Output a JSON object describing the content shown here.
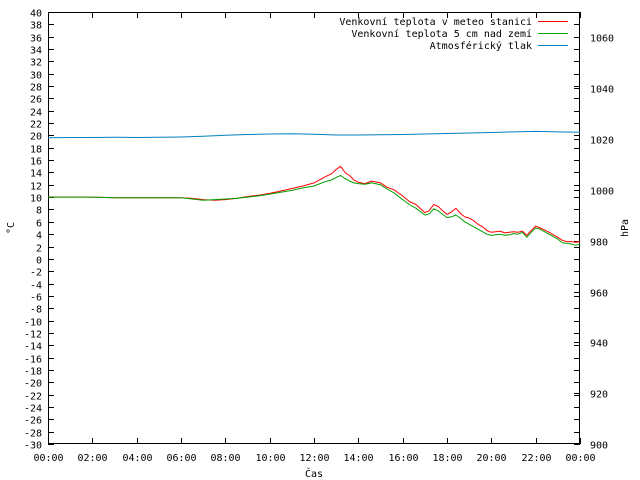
{
  "chart_data": {
    "type": "line",
    "xlabel": "Čas",
    "ylabel": "°C",
    "y2label": "hPa",
    "ylim": [
      -30,
      40
    ],
    "y2lim": [
      900,
      1070
    ],
    "xlim": [
      0,
      24
    ],
    "x_tick_labels": [
      "00:00",
      "02:00",
      "04:00",
      "06:00",
      "08:00",
      "10:00",
      "12:00",
      "14:00",
      "16:00",
      "18:00",
      "20:00",
      "22:00",
      "00:00"
    ],
    "y_ticks": [
      -30,
      -28,
      -26,
      -24,
      -22,
      -20,
      -18,
      -16,
      -14,
      -12,
      -10,
      -8,
      -6,
      -4,
      -2,
      0,
      2,
      4,
      6,
      8,
      10,
      12,
      14,
      16,
      18,
      20,
      22,
      24,
      26,
      28,
      30,
      32,
      34,
      36,
      38,
      40
    ],
    "y2_ticks": [
      900,
      920,
      940,
      960,
      980,
      1000,
      1020,
      1040,
      1060
    ],
    "grid": false,
    "legend": "top-right",
    "series": [
      {
        "name": "Venkovní teplota v meteo stanici",
        "axis": "y",
        "color": "#ff0000",
        "x": [
          0,
          1,
          2,
          3,
          4,
          5,
          6,
          6.5,
          7,
          7.5,
          8,
          8.5,
          9,
          9.5,
          10,
          10.5,
          11,
          11.5,
          12,
          12.5,
          12.8,
          13,
          13.2,
          13.4,
          13.6,
          13.8,
          14,
          14.3,
          14.6,
          15,
          15.3,
          15.6,
          16,
          16.3,
          16.6,
          17,
          17.2,
          17.4,
          17.6,
          17.8,
          18,
          18.2,
          18.4,
          18.6,
          18.8,
          19,
          19.2,
          19.4,
          19.6,
          19.8,
          20,
          20.2,
          20.4,
          20.6,
          20.8,
          21,
          21.2,
          21.4,
          21.6,
          21.8,
          22,
          22.2,
          22.4,
          22.6,
          22.8,
          23,
          23.2,
          23.4,
          23.6,
          23.8,
          24
        ],
        "y": [
          10,
          10,
          10,
          9.9,
          9.9,
          9.9,
          9.9,
          9.8,
          9.6,
          9.5,
          9.6,
          9.8,
          10.1,
          10.3,
          10.6,
          11,
          11.4,
          11.8,
          12.3,
          13.3,
          13.8,
          14.5,
          15,
          14,
          13.5,
          12.8,
          12.4,
          12.2,
          12.6,
          12.3,
          11.6,
          11.2,
          10.2,
          9.3,
          8.8,
          7.5,
          7.8,
          8.8,
          8.5,
          7.8,
          7.2,
          7.6,
          8.2,
          7.4,
          6.8,
          6.6,
          6.2,
          5.6,
          5.2,
          4.6,
          4.3,
          4.4,
          4.5,
          4.2,
          4.3,
          4.4,
          4.3,
          4.5,
          3.8,
          4.6,
          5.3,
          5.0,
          4.7,
          4.3,
          3.9,
          3.5,
          3.0,
          2.8,
          2.8,
          2.7,
          2.8
        ]
      },
      {
        "name": "Venkovní teplota 5 cm nad zemí",
        "axis": "y",
        "color": "#00a000",
        "x": [
          0,
          1,
          2,
          3,
          4,
          5,
          6,
          6.5,
          7,
          7.5,
          8,
          8.5,
          9,
          9.5,
          10,
          10.5,
          11,
          11.5,
          12,
          12.5,
          12.8,
          13,
          13.2,
          13.4,
          13.6,
          13.8,
          14,
          14.3,
          14.6,
          15,
          15.3,
          15.6,
          16,
          16.3,
          16.6,
          17,
          17.2,
          17.4,
          17.6,
          17.8,
          18,
          18.2,
          18.4,
          18.6,
          18.8,
          19,
          19.2,
          19.4,
          19.6,
          19.8,
          20,
          20.2,
          20.4,
          20.6,
          20.8,
          21,
          21.2,
          21.4,
          21.6,
          21.8,
          22,
          22.2,
          22.4,
          22.6,
          22.8,
          23,
          23.2,
          23.4,
          23.6,
          23.8,
          24
        ],
        "y": [
          10,
          10,
          10,
          9.9,
          9.9,
          9.9,
          9.9,
          9.7,
          9.5,
          9.6,
          9.7,
          9.8,
          10,
          10.2,
          10.5,
          10.8,
          11.1,
          11.5,
          11.8,
          12.5,
          12.8,
          13.2,
          13.5,
          13,
          12.6,
          12.3,
          12.2,
          12.1,
          12.3,
          12,
          11.3,
          10.7,
          9.6,
          8.8,
          8.2,
          7.1,
          7.3,
          8.1,
          7.8,
          7.2,
          6.7,
          6.8,
          7.1,
          6.6,
          6.0,
          5.6,
          5.2,
          4.8,
          4.4,
          4.0,
          3.8,
          3.9,
          4.0,
          3.8,
          3.9,
          4.1,
          4.0,
          4.3,
          3.5,
          4.3,
          5.0,
          4.8,
          4.4,
          4.0,
          3.6,
          3.2,
          2.6,
          2.5,
          2.4,
          2.2,
          2.4
        ]
      },
      {
        "name": "Atmosférický tlak",
        "axis": "y2",
        "color": "#0080c0",
        "x": [
          0,
          1,
          2,
          3,
          4,
          5,
          6,
          7,
          8,
          9,
          10,
          11,
          12,
          13,
          14,
          15,
          16,
          17,
          18,
          19,
          20,
          21,
          22,
          23,
          24
        ],
        "y": [
          1020.5,
          1020.6,
          1020.6,
          1020.7,
          1020.6,
          1020.7,
          1020.8,
          1021.1,
          1021.5,
          1021.8,
          1022.0,
          1022.1,
          1021.9,
          1021.6,
          1021.6,
          1021.7,
          1021.8,
          1022.0,
          1022.2,
          1022.4,
          1022.6,
          1022.8,
          1023.0,
          1022.8,
          1022.7
        ]
      }
    ]
  }
}
